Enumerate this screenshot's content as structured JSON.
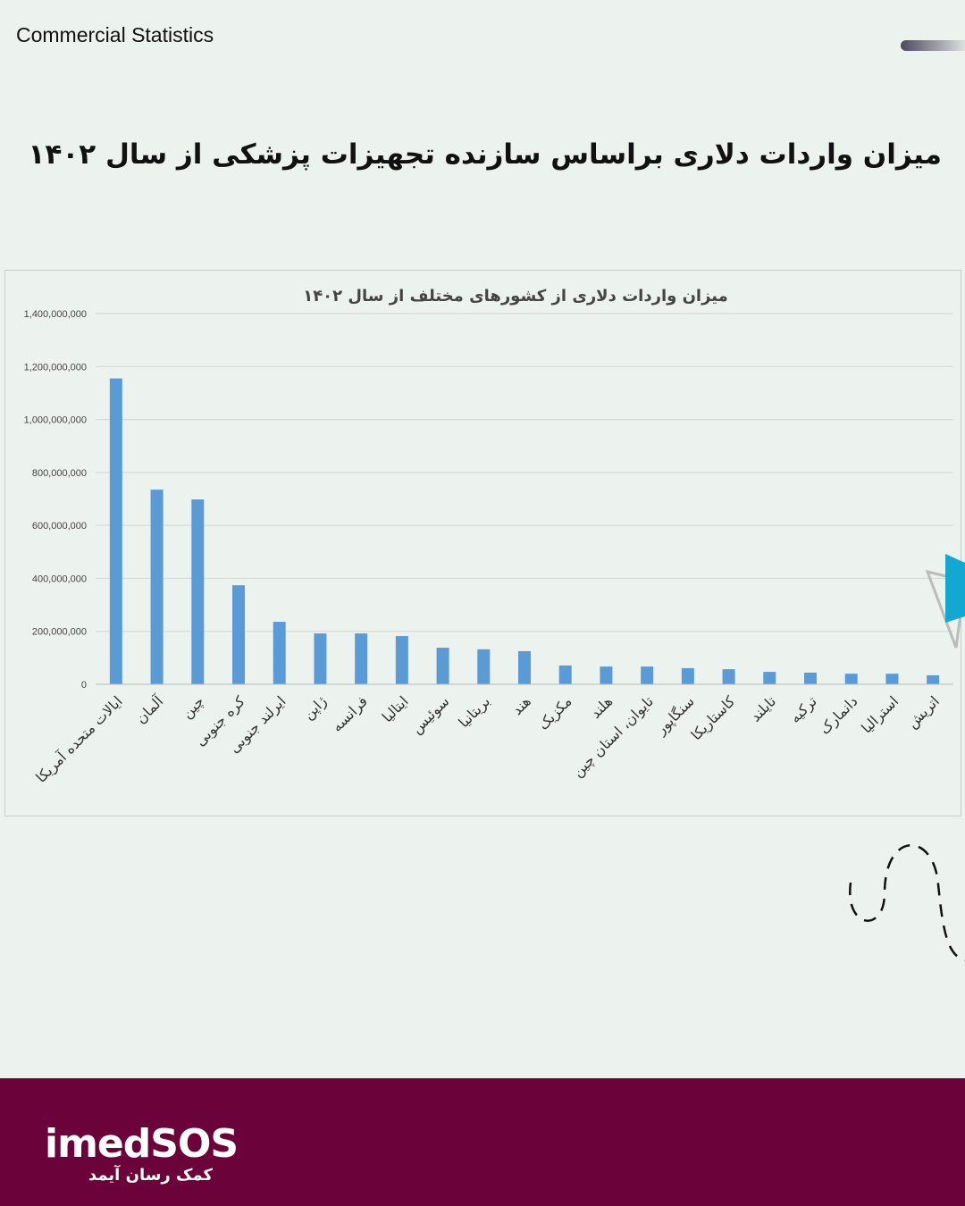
{
  "header": {
    "brand": "Commercial Statistics",
    "title": "میزان واردات دلاری براساس سازنده تجهیزات پزشکی از سال ۱۴۰۲"
  },
  "footer": {
    "logo": "imedSOS",
    "tagline": "کمک رسان آیمد"
  },
  "chart_data": {
    "type": "bar",
    "title": "میزان واردات دلاری از کشورهای مختلف از سال ۱۴۰۲",
    "xlabel": "",
    "ylabel": "",
    "ylim": [
      0,
      1400000000
    ],
    "yticks": [
      0,
      200000000,
      400000000,
      600000000,
      800000000,
      1000000000,
      1200000000,
      1400000000
    ],
    "ytick_labels": [
      "0",
      "200,000,000",
      "400,000,000",
      "600,000,000",
      "800,000,000",
      "1,000,000,000",
      "1,200,000,000",
      "1,400,000,000"
    ],
    "grid": true,
    "color": "#5b9bd5",
    "categories": [
      "ایالات متحده آمریکا",
      "آلمان",
      "چین",
      "کره جنوبی",
      "ایرلند جنوبی",
      "ژاپن",
      "فرانسه",
      "ایتالیا",
      "سوئیس",
      "بریتانیا",
      "هند",
      "مکزیک",
      "هلند",
      "تایوان، استان چین",
      "سنگاپور",
      "کاستاریکا",
      "تایلند",
      "ترکیه",
      "دانمارک",
      "استرالیا",
      "اتریش"
    ],
    "values": [
      1155000000,
      735000000,
      698000000,
      374000000,
      236000000,
      192000000,
      192000000,
      182000000,
      138000000,
      132000000,
      125000000,
      71000000,
      67000000,
      67000000,
      61000000,
      57000000,
      47000000,
      44000000,
      40000000,
      40000000,
      34000000
    ]
  }
}
